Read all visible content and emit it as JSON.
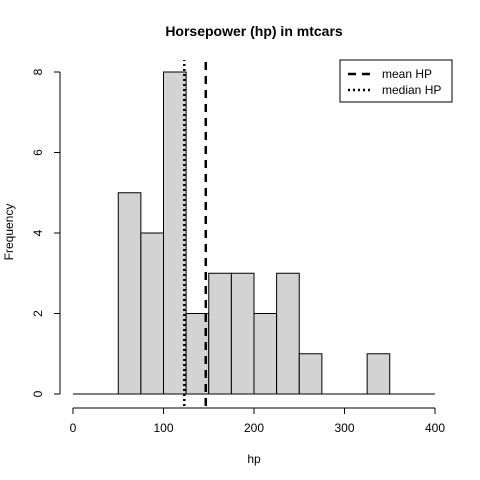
{
  "chart_data": {
    "type": "bar",
    "title": "Horsepower (hp) in mtcars",
    "xlabel": "hp",
    "ylabel": "Frequency",
    "bins": [
      {
        "from": 50,
        "to": 75,
        "count": 5
      },
      {
        "from": 75,
        "to": 100,
        "count": 4
      },
      {
        "from": 100,
        "to": 125,
        "count": 8
      },
      {
        "from": 125,
        "to": 150,
        "count": 2
      },
      {
        "from": 150,
        "to": 175,
        "count": 3
      },
      {
        "from": 175,
        "to": 200,
        "count": 3
      },
      {
        "from": 200,
        "to": 225,
        "count": 2
      },
      {
        "from": 225,
        "to": 250,
        "count": 3
      },
      {
        "from": 250,
        "to": 275,
        "count": 1
      },
      {
        "from": 275,
        "to": 300,
        "count": 0
      },
      {
        "from": 300,
        "to": 325,
        "count": 0
      },
      {
        "from": 325,
        "to": 350,
        "count": 1
      }
    ],
    "xlim": [
      0,
      400
    ],
    "ylim": [
      0,
      8
    ],
    "x_ticks": [
      0,
      100,
      200,
      300,
      400
    ],
    "y_ticks": [
      0,
      2,
      4,
      6,
      8
    ],
    "reference_lines": [
      {
        "label": "mean HP",
        "value": 146.7,
        "style": "dashed"
      },
      {
        "label": "median HP",
        "value": 123,
        "style": "dotted"
      }
    ],
    "legend_position": "top-right",
    "bar_color": "#d3d3d3",
    "grid": false
  }
}
